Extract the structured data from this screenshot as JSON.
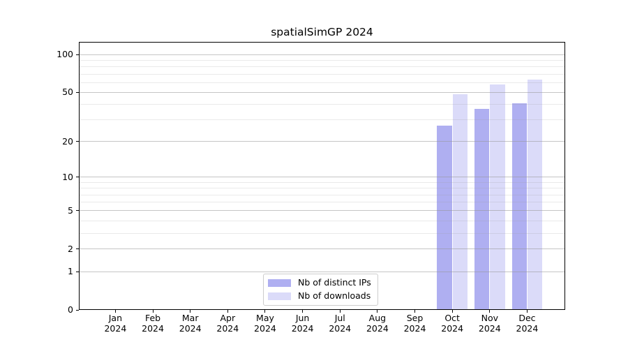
{
  "chart_data": {
    "type": "bar",
    "title": "spatialSimGP 2024",
    "year_label": "2024",
    "categories": [
      "Jan",
      "Feb",
      "Mar",
      "Apr",
      "May",
      "Jun",
      "Jul",
      "Aug",
      "Sep",
      "Oct",
      "Nov",
      "Dec"
    ],
    "series": [
      {
        "name": "Nb of distinct IPs",
        "color": "rgba(85,85,225,0.47)",
        "values": [
          0,
          0,
          0,
          0,
          0,
          0,
          0,
          0,
          0,
          27,
          37,
          41
        ]
      },
      {
        "name": "Nb of downloads",
        "color": "rgba(85,85,225,0.21)",
        "values": [
          0,
          0,
          0,
          0,
          0,
          0,
          0,
          0,
          0,
          48,
          58,
          63
        ]
      }
    ],
    "xlabel": "",
    "ylabel": "",
    "yscale": "log1p",
    "ylim": [
      0,
      126
    ],
    "yticks": [
      0,
      1,
      2,
      5,
      10,
      20,
      50,
      100
    ],
    "yticks_minor": [
      3,
      4,
      6,
      7,
      8,
      9,
      30,
      40,
      60,
      70,
      80,
      90
    ],
    "grid": "horizontal major and minor gridlines, drawn above bars",
    "legend_position": "lower center inside plot"
  },
  "colors": {
    "bar_distinct_ips": "rgba(85,85,225,0.47)",
    "bar_downloads": "rgba(85,85,225,0.21)",
    "grid_major": "#cbcbcb",
    "grid_minor": "#eaeaea",
    "spine": "#000000",
    "legend_border": "#cccccc",
    "background": "#ffffff"
  }
}
